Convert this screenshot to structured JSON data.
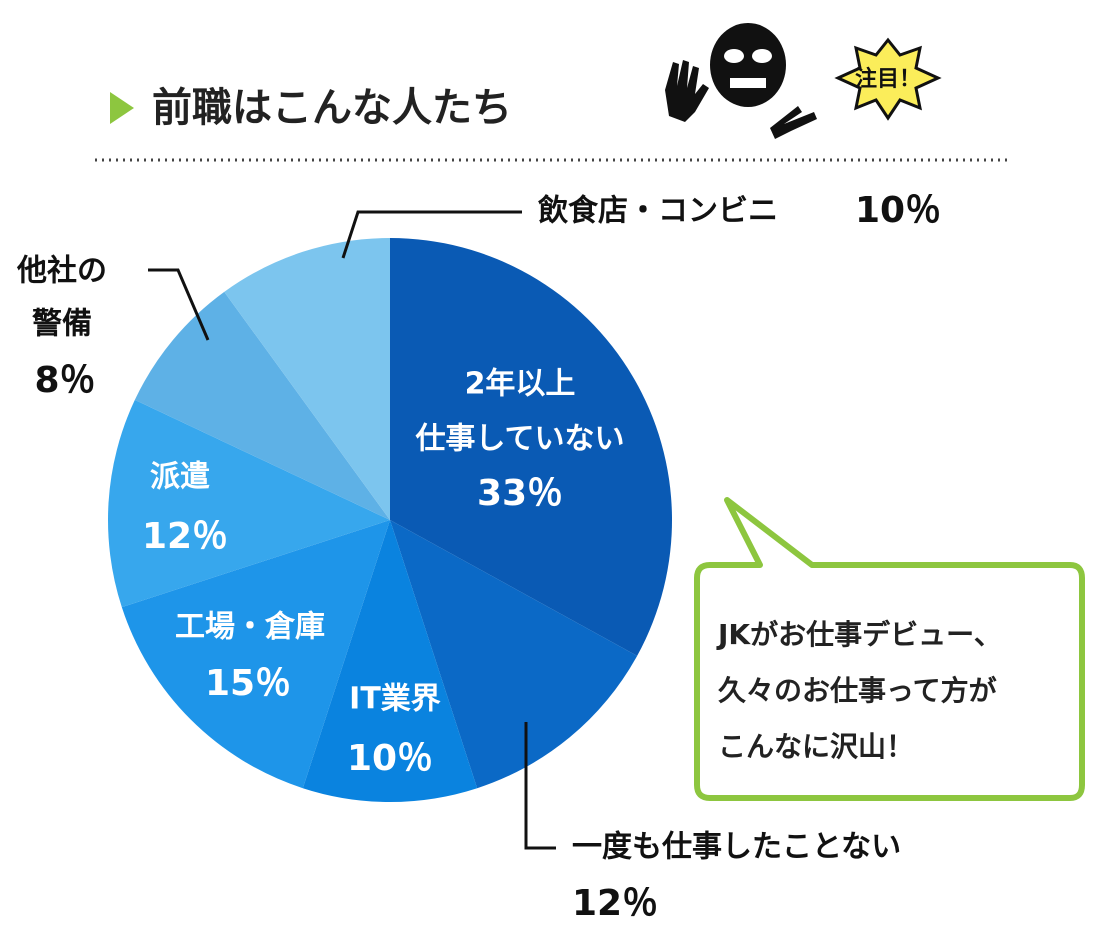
{
  "chart_data": {
    "type": "pie",
    "title": "前職はこんな人たち",
    "badge": "注目！",
    "categories": [
      [
        "2年以上",
        "仕事していない"
      ],
      [
        "一度も仕事したことない"
      ],
      [
        "IT業界"
      ],
      [
        "工場・倉庫"
      ],
      [
        "派遣"
      ],
      [
        "他社の",
        "警備"
      ],
      [
        "飲食店・コンビニ"
      ]
    ],
    "values": [
      33,
      12,
      10,
      15,
      12,
      8,
      10
    ],
    "value_labels": [
      "33％",
      "12％",
      "10％",
      "15％",
      "12％",
      "8％",
      "10％"
    ],
    "colors": [
      "#0a5ab4",
      "#0b69c6",
      "#0a83df",
      "#1e95e9",
      "#37a7ed",
      "#5eb1e6",
      "#7cc5ee"
    ],
    "note": [
      "JKがお仕事デビュー、",
      "久々のお仕事って方が",
      "こんなに沢山！"
    ]
  }
}
